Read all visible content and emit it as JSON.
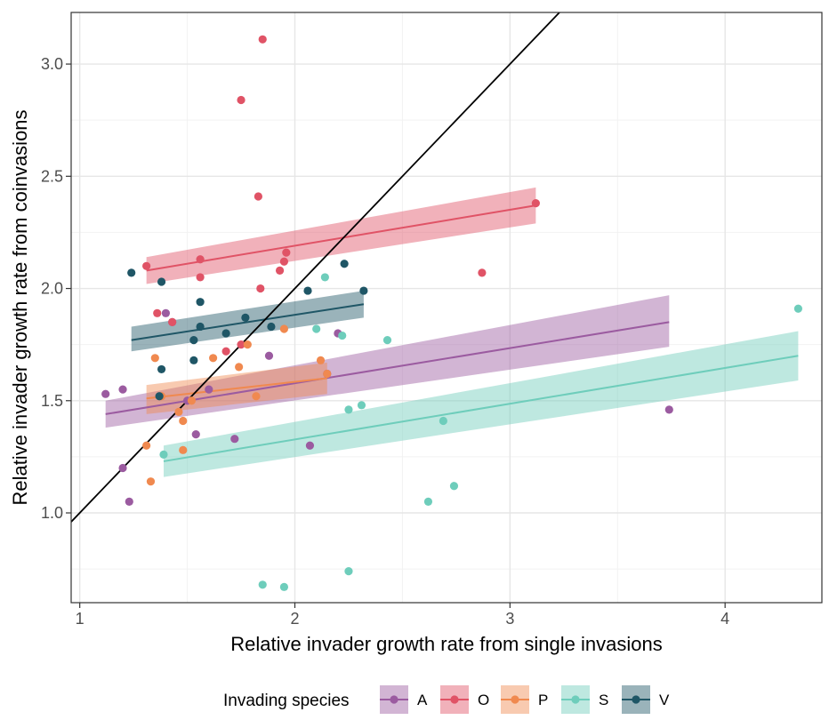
{
  "chart_data": {
    "type": "scatter",
    "xlabel": "Relative invader growth rate from single invasions",
    "ylabel": "Relative invader growth rate from coinvasions",
    "xlim": [
      0.96,
      4.45
    ],
    "ylim": [
      0.6,
      3.23
    ],
    "xticks": [
      "1",
      "2",
      "3",
      "4"
    ],
    "yticks": [
      "1.0",
      "1.5",
      "2.0",
      "2.5",
      "3.0"
    ],
    "grid": true,
    "reference_line": {
      "slope": 1,
      "intercept": 0
    },
    "legend": {
      "title": "Invading species",
      "position": "bottom"
    },
    "series": [
      {
        "name": "A",
        "color": "#9b5ba0",
        "points": [
          [
            1.12,
            1.53
          ],
          [
            1.2,
            1.55
          ],
          [
            1.2,
            1.2
          ],
          [
            1.23,
            1.05
          ],
          [
            1.4,
            1.89
          ],
          [
            1.43,
            1.85
          ],
          [
            1.5,
            1.5
          ],
          [
            1.54,
            1.35
          ],
          [
            1.6,
            1.55
          ],
          [
            1.72,
            1.33
          ],
          [
            1.88,
            1.7
          ],
          [
            2.07,
            1.3
          ],
          [
            2.15,
            1.62
          ],
          [
            2.2,
            1.8
          ],
          [
            3.74,
            1.46
          ]
        ],
        "fit": {
          "x": [
            1.12,
            3.74
          ],
          "y": [
            1.44,
            1.85
          ],
          "ci_low": [
            1.38,
            1.74
          ],
          "ci_high": [
            1.5,
            1.97
          ]
        }
      },
      {
        "name": "O",
        "color": "#e05366",
        "points": [
          [
            1.31,
            2.1
          ],
          [
            1.36,
            1.89
          ],
          [
            1.43,
            1.85
          ],
          [
            1.56,
            2.13
          ],
          [
            1.56,
            2.05
          ],
          [
            1.68,
            1.72
          ],
          [
            1.75,
            2.84
          ],
          [
            1.75,
            1.75
          ],
          [
            1.83,
            2.41
          ],
          [
            1.84,
            2.0
          ],
          [
            1.85,
            3.11
          ],
          [
            1.93,
            2.08
          ],
          [
            1.95,
            2.12
          ],
          [
            1.96,
            2.16
          ],
          [
            2.87,
            2.07
          ],
          [
            3.12,
            2.38
          ]
        ],
        "fit": {
          "x": [
            1.31,
            3.12
          ],
          "y": [
            2.08,
            2.37
          ],
          "ci_low": [
            2.02,
            2.29
          ],
          "ci_high": [
            2.14,
            2.45
          ]
        }
      },
      {
        "name": "P",
        "color": "#f0894f",
        "points": [
          [
            1.31,
            1.3
          ],
          [
            1.33,
            1.14
          ],
          [
            1.35,
            1.69
          ],
          [
            1.38,
            1.52
          ],
          [
            1.46,
            1.45
          ],
          [
            1.48,
            1.41
          ],
          [
            1.48,
            1.28
          ],
          [
            1.52,
            1.5
          ],
          [
            1.62,
            1.69
          ],
          [
            1.74,
            1.65
          ],
          [
            1.78,
            1.75
          ],
          [
            1.82,
            1.52
          ],
          [
            1.95,
            1.82
          ],
          [
            2.12,
            1.68
          ],
          [
            2.15,
            1.62
          ]
        ],
        "fit": {
          "x": [
            1.31,
            2.15
          ],
          "y": [
            1.51,
            1.6
          ],
          "ci_low": [
            1.44,
            1.53
          ],
          "ci_high": [
            1.57,
            1.67
          ]
        }
      },
      {
        "name": "S",
        "color": "#6ecdbb",
        "points": [
          [
            1.39,
            1.26
          ],
          [
            1.85,
            0.68
          ],
          [
            1.95,
            0.67
          ],
          [
            2.1,
            1.82
          ],
          [
            2.14,
            2.05
          ],
          [
            2.22,
            1.79
          ],
          [
            2.25,
            1.46
          ],
          [
            2.25,
            0.74
          ],
          [
            2.31,
            1.48
          ],
          [
            2.43,
            1.77
          ],
          [
            2.62,
            1.05
          ],
          [
            2.69,
            1.41
          ],
          [
            2.74,
            1.12
          ],
          [
            4.34,
            1.91
          ]
        ],
        "fit": {
          "x": [
            1.39,
            4.34
          ],
          "y": [
            1.23,
            1.7
          ],
          "ci_low": [
            1.16,
            1.59
          ],
          "ci_high": [
            1.3,
            1.81
          ]
        }
      },
      {
        "name": "V",
        "color": "#1f5666",
        "points": [
          [
            1.24,
            2.07
          ],
          [
            1.37,
            1.52
          ],
          [
            1.38,
            2.03
          ],
          [
            1.38,
            1.64
          ],
          [
            1.53,
            1.77
          ],
          [
            1.53,
            1.68
          ],
          [
            1.56,
            1.94
          ],
          [
            1.56,
            1.83
          ],
          [
            1.68,
            1.8
          ],
          [
            1.77,
            1.87
          ],
          [
            1.89,
            1.83
          ],
          [
            2.06,
            1.99
          ],
          [
            2.23,
            2.11
          ],
          [
            2.32,
            1.99
          ]
        ],
        "fit": {
          "x": [
            1.24,
            2.32
          ],
          "y": [
            1.77,
            1.93
          ],
          "ci_low": [
            1.72,
            1.87
          ],
          "ci_high": [
            1.83,
            1.99
          ]
        }
      }
    ]
  }
}
